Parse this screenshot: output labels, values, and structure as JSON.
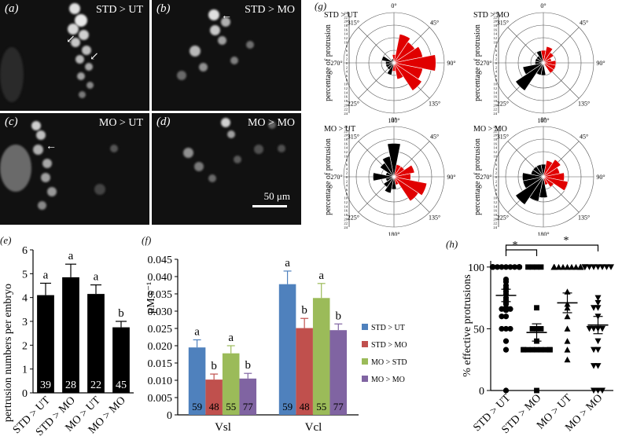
{
  "micrographs": [
    {
      "label": "(a)",
      "title": "STD > UT"
    },
    {
      "label": "(b)",
      "title": "STD > MO"
    },
    {
      "label": "(c)",
      "title": "MO > UT"
    },
    {
      "label": "(d)",
      "title": "MO > MO"
    }
  ],
  "scale_bar": "50 μm",
  "panel_labels": {
    "e": "(e)",
    "f": "(f)",
    "g": "(g)",
    "h": "(h)"
  },
  "chart_data": [
    {
      "id": "e",
      "type": "bar",
      "ylabel": "pertrusion numbers per embryo",
      "categories": [
        "STD > UT",
        "STD > MO",
        "MO > UT",
        "MO > MO"
      ],
      "values": [
        4.1,
        4.85,
        4.15,
        2.75
      ],
      "errors": [
        0.5,
        0.55,
        0.38,
        0.25
      ],
      "letters": [
        "a",
        "a",
        "a",
        "b"
      ],
      "n": [
        "39",
        "28",
        "22",
        "45"
      ],
      "ylim": [
        0,
        6
      ],
      "yticks": [
        0,
        1,
        2,
        3,
        4,
        5,
        6
      ],
      "color": "#000000"
    },
    {
      "id": "f",
      "type": "bar",
      "ylabel": "μM s⁻¹",
      "groups": [
        "Vsl",
        "Vcl"
      ],
      "ylim": [
        0,
        0.045
      ],
      "yticks": [
        "0",
        "0.005",
        "0.010",
        "0.015",
        "0.020",
        "0.025",
        "0.030",
        "0.035",
        "0.040",
        "0.045"
      ],
      "series": [
        {
          "name": "STD > UT",
          "color": "#4f81bd",
          "values": [
            0.0195,
            0.0378
          ],
          "errors": [
            0.0022,
            0.0038
          ],
          "letters": [
            "a",
            "a"
          ],
          "n": [
            "59",
            "59"
          ]
        },
        {
          "name": "STD > MO",
          "color": "#c0504d",
          "values": [
            0.0102,
            0.0251
          ],
          "errors": [
            0.0016,
            0.0028
          ],
          "letters": [
            "b",
            "b"
          ],
          "n": [
            "48",
            "48"
          ]
        },
        {
          "name": "MO > STD",
          "color": "#9bbb59",
          "values": [
            0.0178,
            0.0338
          ],
          "errors": [
            0.0022,
            0.0042
          ],
          "letters": [
            "a",
            "a"
          ],
          "n": [
            "55",
            "55"
          ]
        },
        {
          "name": "MO > MO",
          "color": "#8064a2",
          "values": [
            0.0105,
            0.0245
          ],
          "errors": [
            0.0015,
            0.0018
          ],
          "letters": [
            "b",
            "b"
          ],
          "n": [
            "77",
            "77"
          ]
        }
      ]
    },
    {
      "id": "g",
      "type": "rose",
      "ylabel": "percentage of protrusion",
      "angle_labels": [
        "0°",
        "45°",
        "90°",
        "135°",
        "180°",
        "225°",
        "270°",
        "315°"
      ],
      "scale_ticks": [
        "24",
        "22",
        "20",
        "18",
        "16",
        "14",
        "12",
        "10",
        "8",
        "6",
        "4",
        "2",
        "0",
        "2",
        "4",
        "6",
        "8",
        "10",
        "12",
        "14",
        "16",
        "18",
        "20",
        "22",
        "24"
      ],
      "rmax": 24,
      "sectors_deg": [
        0,
        22.5,
        45,
        67.5,
        90,
        112.5,
        135,
        157.5,
        180,
        202.5,
        225,
        247.5,
        270,
        292.5,
        315,
        337.5
      ],
      "plots": [
        {
          "title": "STD > UT",
          "red": [
            4,
            14,
            12,
            14,
            20,
            14,
            16,
            8,
            4,
            0,
            0,
            0,
            0,
            0,
            0,
            0
          ],
          "black": [
            0,
            0,
            0,
            0,
            0,
            0,
            0,
            0,
            0,
            6,
            4,
            4,
            4,
            6,
            2,
            2
          ]
        },
        {
          "title": "STD > MO",
          "red": [
            6,
            8,
            6,
            4,
            6,
            6,
            6,
            0,
            0,
            0,
            0,
            0,
            0,
            0,
            0,
            0
          ],
          "black": [
            0,
            0,
            0,
            0,
            0,
            0,
            0,
            0,
            6,
            6,
            16,
            10,
            4,
            4,
            4,
            6
          ]
        },
        {
          "title": "MO > UT",
          "red": [
            0,
            6,
            6,
            10,
            8,
            16,
            14,
            4,
            0,
            0,
            0,
            0,
            0,
            0,
            0,
            0
          ],
          "black": [
            16,
            0,
            0,
            0,
            0,
            0,
            0,
            0,
            6,
            8,
            6,
            4,
            10,
            4,
            8,
            10
          ]
        },
        {
          "title": "MO > MO",
          "red": [
            4,
            8,
            10,
            8,
            10,
            12,
            6,
            4,
            0,
            0,
            0,
            0,
            0,
            0,
            0,
            0
          ],
          "black": [
            6,
            0,
            0,
            0,
            0,
            0,
            0,
            0,
            10,
            12,
            16,
            10,
            10,
            6,
            6,
            6
          ]
        }
      ]
    },
    {
      "id": "h",
      "type": "scatter",
      "ylabel": "% effective protrusions",
      "categories": [
        "STD > UT",
        "STD > MO",
        "MO > UT",
        "MO > MO"
      ],
      "markers": [
        "circle",
        "square",
        "triangle-up",
        "triangle-down"
      ],
      "yticks": [
        0,
        50,
        100
      ],
      "ylim": [
        0,
        105
      ],
      "means": [
        77,
        47,
        71,
        53
      ],
      "sem": [
        5,
        7,
        8,
        7
      ],
      "significance": [
        "*",
        "*"
      ],
      "points": [
        [
          100,
          100,
          100,
          100,
          100,
          100,
          100,
          100,
          100,
          100,
          100,
          100,
          100,
          100,
          100,
          100,
          90,
          88,
          85,
          83,
          82,
          80,
          78,
          75,
          73,
          71,
          70,
          67,
          66,
          66,
          66,
          65,
          60,
          60,
          50,
          50,
          50,
          40,
          33,
          0
        ],
        [
          100,
          100,
          100,
          100,
          67,
          50,
          50,
          50,
          40,
          33,
          33,
          33,
          33,
          33,
          33,
          33,
          33,
          33,
          0
        ],
        [
          100,
          100,
          100,
          100,
          100,
          100,
          100,
          100,
          100,
          100,
          100,
          80,
          70,
          67,
          60,
          50,
          40,
          33,
          25
        ],
        [
          100,
          100,
          100,
          100,
          100,
          100,
          100,
          100,
          75,
          71,
          67,
          67,
          60,
          50,
          50,
          50,
          50,
          40,
          33,
          33,
          20,
          20,
          0,
          0,
          0
        ]
      ]
    }
  ]
}
